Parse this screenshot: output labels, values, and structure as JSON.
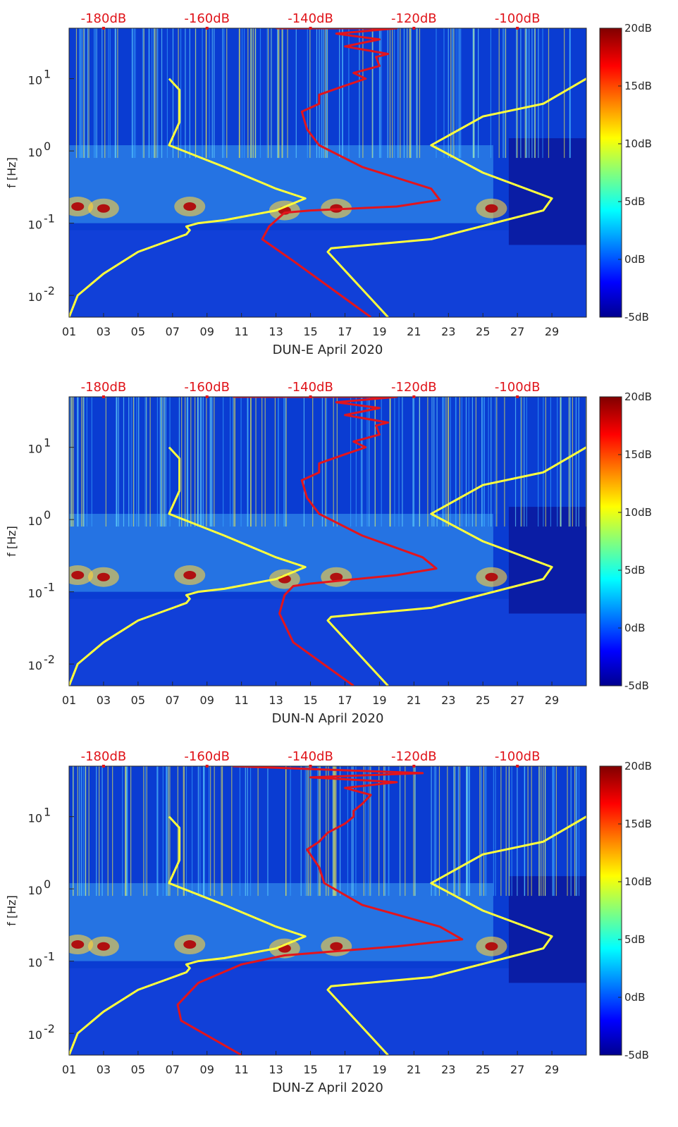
{
  "figure": {
    "width": 962,
    "height": 1599
  },
  "colors": {
    "yellow": "#ffff3c",
    "red": "#e3141c",
    "top_axis": "#e0141a",
    "bg": "#0a3cd2"
  },
  "chart_data": [
    {
      "type": "heatmap",
      "station": "DUN-E",
      "xlabel": "DUN-E April 2020",
      "ylabel": "f [Hz]",
      "x_ticks": [
        "01",
        "03",
        "05",
        "07",
        "09",
        "11",
        "13",
        "15",
        "17",
        "19",
        "21",
        "23",
        "25",
        "27",
        "29"
      ],
      "xlim": [
        1,
        31
      ],
      "y_ticks": [
        {
          "label": "10",
          "exp": "-2",
          "value": 0.01
        },
        {
          "label": "10",
          "exp": "-1",
          "value": 0.1
        },
        {
          "label": "10",
          "exp": "0",
          "value": 1
        },
        {
          "label": "10",
          "exp": "1",
          "value": 10
        }
      ],
      "ylim": [
        0.005,
        50
      ],
      "top_ticks": [
        "-180dB",
        "-160dB",
        "-140dB",
        "-120dB",
        "-100dB"
      ],
      "top_day_positions": [
        3,
        9,
        15,
        21,
        27
      ],
      "colorbar_ticks": [
        "20dB",
        "15dB",
        "10dB",
        "5dB",
        "0dB",
        "-5dB"
      ],
      "colorbar_range": [
        -5,
        20
      ],
      "yellow_model_left": {
        "x": [
          1,
          1.5,
          3,
          5,
          7.8,
          8,
          7.8,
          8.5,
          10,
          13,
          14.7,
          13,
          10,
          6.8,
          7.4,
          7.4,
          6.8
        ],
        "f": [
          0.005,
          0.01,
          0.02,
          0.04,
          0.07,
          0.08,
          0.09,
          0.1,
          0.11,
          0.15,
          0.22,
          0.3,
          0.6,
          1.2,
          2.5,
          7,
          10
        ]
      },
      "yellow_model_right": {
        "x": [
          19.5,
          16,
          16.2,
          22,
          28.5,
          29,
          25,
          22,
          25,
          28.5,
          31
        ],
        "f": [
          0.005,
          0.04,
          0.045,
          0.06,
          0.15,
          0.22,
          0.5,
          1.2,
          3,
          4.5,
          10
        ]
      },
      "red_spectrum": {
        "x": [
          18.5,
          14,
          12.2,
          12.6,
          13.5,
          15,
          20,
          22.5,
          22,
          18,
          15.5,
          14.8,
          14.5,
          15.5,
          15.5,
          17,
          18.2,
          17.5,
          19,
          18.8,
          19.5,
          17,
          19,
          16.5,
          20,
          13
        ],
        "f": [
          0.005,
          0.03,
          0.06,
          0.09,
          0.14,
          0.15,
          0.17,
          0.21,
          0.3,
          0.6,
          1.2,
          2,
          3.5,
          4.5,
          6,
          8,
          10,
          12,
          15,
          20,
          22,
          28,
          35,
          42,
          50,
          50
        ]
      }
    },
    {
      "type": "heatmap",
      "station": "DUN-N",
      "xlabel": "DUN-N April 2020",
      "ylabel": "f [Hz]",
      "x_ticks": [
        "01",
        "03",
        "05",
        "07",
        "09",
        "11",
        "13",
        "15",
        "17",
        "19",
        "21",
        "23",
        "25",
        "27",
        "29"
      ],
      "xlim": [
        1,
        31
      ],
      "y_ticks": [
        {
          "label": "10",
          "exp": "-2",
          "value": 0.01
        },
        {
          "label": "10",
          "exp": "-1",
          "value": 0.1
        },
        {
          "label": "10",
          "exp": "0",
          "value": 1
        },
        {
          "label": "10",
          "exp": "1",
          "value": 10
        }
      ],
      "ylim": [
        0.005,
        50
      ],
      "top_ticks": [
        "-180dB",
        "-160dB",
        "-140dB",
        "-120dB",
        "-100dB"
      ],
      "top_day_positions": [
        3,
        9,
        15,
        21,
        27
      ],
      "colorbar_ticks": [
        "20dB",
        "15dB",
        "10dB",
        "5dB",
        "0dB",
        "-5dB"
      ],
      "colorbar_range": [
        -5,
        20
      ],
      "yellow_model_left": {
        "x": [
          1,
          1.5,
          3,
          5,
          7.8,
          8,
          7.8,
          8.5,
          10,
          13,
          14.7,
          13,
          10,
          6.8,
          7.4,
          7.4,
          6.8
        ],
        "f": [
          0.005,
          0.01,
          0.02,
          0.04,
          0.07,
          0.08,
          0.09,
          0.1,
          0.11,
          0.15,
          0.22,
          0.3,
          0.6,
          1.2,
          2.5,
          7,
          10
        ]
      },
      "yellow_model_right": {
        "x": [
          19.5,
          16,
          16.2,
          22,
          28.5,
          29,
          25,
          22,
          25,
          28.5,
          31
        ],
        "f": [
          0.005,
          0.04,
          0.045,
          0.06,
          0.15,
          0.22,
          0.5,
          1.2,
          3,
          4.5,
          10
        ]
      },
      "red_spectrum": {
        "x": [
          17.5,
          14,
          13.2,
          13.5,
          14,
          15,
          20,
          22.3,
          21.5,
          18,
          15.5,
          14.8,
          14.5,
          15.5,
          15.5,
          17,
          18.2,
          17.5,
          19,
          18.8,
          19.5,
          17,
          19,
          16.5,
          20,
          10.5
        ],
        "f": [
          0.005,
          0.02,
          0.05,
          0.09,
          0.12,
          0.13,
          0.17,
          0.21,
          0.3,
          0.6,
          1.2,
          2,
          3.5,
          4.5,
          6,
          8,
          10,
          12,
          15,
          20,
          22,
          28,
          35,
          42,
          50,
          50
        ]
      }
    },
    {
      "type": "heatmap",
      "station": "DUN-Z",
      "xlabel": "DUN-Z April 2020",
      "ylabel": "f [Hz]",
      "x_ticks": [
        "01",
        "03",
        "05",
        "07",
        "09",
        "11",
        "13",
        "15",
        "17",
        "19",
        "21",
        "23",
        "25",
        "27",
        "29"
      ],
      "xlim": [
        1,
        31
      ],
      "y_ticks": [
        {
          "label": "10",
          "exp": "-2",
          "value": 0.01
        },
        {
          "label": "10",
          "exp": "-1",
          "value": 0.1
        },
        {
          "label": "10",
          "exp": "0",
          "value": 1
        },
        {
          "label": "10",
          "exp": "1",
          "value": 10
        }
      ],
      "ylim": [
        0.005,
        50
      ],
      "top_ticks": [
        "-180dB",
        "-160dB",
        "-140dB",
        "-120dB",
        "-100dB"
      ],
      "top_day_positions": [
        3,
        9,
        15,
        21,
        27
      ],
      "colorbar_ticks": [
        "20dB",
        "15dB",
        "10dB",
        "5dB",
        "0dB",
        "-5dB"
      ],
      "colorbar_range": [
        -5,
        20
      ],
      "yellow_model_left": {
        "x": [
          1,
          1.5,
          3,
          5,
          7.8,
          8,
          7.8,
          8.5,
          10,
          13,
          14.7,
          13,
          10,
          6.8,
          7.4,
          7.4,
          6.8
        ],
        "f": [
          0.005,
          0.01,
          0.02,
          0.04,
          0.07,
          0.08,
          0.09,
          0.1,
          0.11,
          0.15,
          0.22,
          0.3,
          0.6,
          1.2,
          2.5,
          7,
          10
        ]
      },
      "yellow_model_right": {
        "x": [
          19.5,
          16,
          16.2,
          22,
          28.5,
          29,
          25,
          22,
          25,
          28.5,
          31
        ],
        "f": [
          0.005,
          0.04,
          0.045,
          0.06,
          0.15,
          0.22,
          0.5,
          1.2,
          3,
          4.5,
          10
        ]
      },
      "red_spectrum": {
        "x": [
          11,
          7.5,
          7.3,
          8.5,
          11,
          13.5,
          20,
          23.8,
          22.5,
          18,
          15.8,
          15.5,
          14.8,
          15.5,
          16,
          17,
          17.5,
          17.5,
          18,
          18.5,
          17,
          20,
          15,
          21.5,
          10.5
        ],
        "f": [
          0.005,
          0.015,
          0.025,
          0.05,
          0.09,
          0.12,
          0.16,
          0.2,
          0.3,
          0.6,
          1.2,
          2,
          3.5,
          4.5,
          6,
          8,
          10,
          12,
          15,
          20,
          25,
          30,
          35,
          40,
          50
        ]
      }
    }
  ]
}
